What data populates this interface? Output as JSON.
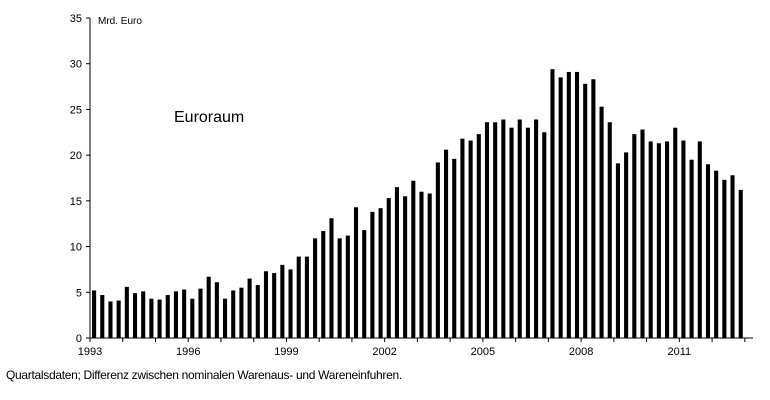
{
  "chart_data": {
    "type": "bar",
    "ylabel": "Mrd. Euro",
    "annotation": "Euroraum",
    "ylim": [
      0,
      35
    ],
    "yticks": [
      0,
      5,
      10,
      15,
      20,
      25,
      30,
      35
    ],
    "xlim": [
      1993,
      2013.25
    ],
    "xticks": [
      "1993",
      "1996",
      "1999",
      "2002",
      "2005",
      "2008",
      "2011"
    ],
    "bar_color": "#000000",
    "grid": false,
    "start_year": 1993,
    "values": [
      5.2,
      4.7,
      4.0,
      4.1,
      5.6,
      4.9,
      5.1,
      4.3,
      4.2,
      4.7,
      5.1,
      5.3,
      4.3,
      5.4,
      6.7,
      6.1,
      4.3,
      5.2,
      5.5,
      6.5,
      5.8,
      7.3,
      7.1,
      8.0,
      7.5,
      8.9,
      8.9,
      10.9,
      11.7,
      13.1,
      10.9,
      11.2,
      14.3,
      11.8,
      13.8,
      14.2,
      15.3,
      16.5,
      15.5,
      17.2,
      16.0,
      15.8,
      19.2,
      20.6,
      19.6,
      21.8,
      21.6,
      22.3,
      23.6,
      23.6,
      23.9,
      23.0,
      23.9,
      23.0,
      23.9,
      22.5,
      29.4,
      28.5,
      29.1,
      29.1,
      27.8,
      28.3,
      25.3,
      23.6,
      19.1,
      20.3,
      22.3,
      22.8,
      21.5,
      21.3,
      21.5,
      23.0,
      21.6,
      19.5,
      21.5,
      19.0,
      18.3,
      17.3,
      17.8,
      16.2
    ]
  },
  "footnote": "Quartalsdaten; Differenz zwischen nominalen Warenaus- und Wareneinfuhren."
}
